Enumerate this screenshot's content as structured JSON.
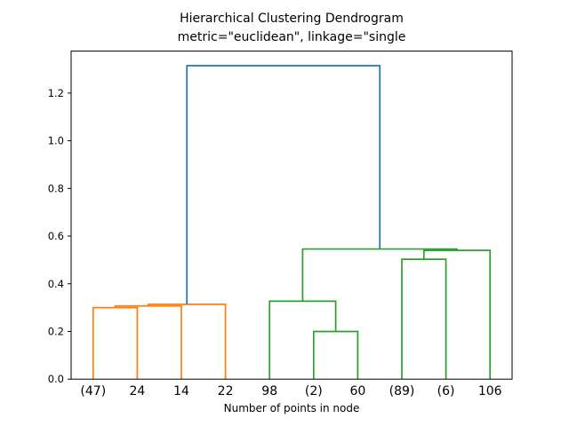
{
  "title": {
    "line1": "Hierarchical Clustering Dendrogram",
    "line2": "metric=\"euclidean\", linkage=\"single"
  },
  "xlabel": "Number of points in node",
  "colors": {
    "root_link": "#1f77b4",
    "cluster_left": "#ff7f0e",
    "cluster_right": "#2ca02c",
    "axis": "#000000",
    "background": "#ffffff"
  },
  "chart_data": {
    "type": "dendrogram",
    "title": "Hierarchical Clustering Dendrogram",
    "subtitle": "metric=\"euclidean\", linkage=\"single",
    "xlabel": "Number of points in node",
    "ylabel": "",
    "grid": false,
    "legend": false,
    "xlim": [
      0,
      100
    ],
    "ylim": [
      0,
      1.376
    ],
    "yticks": [
      0,
      0.2,
      0.4,
      0.6,
      0.8,
      1.0,
      1.2
    ],
    "ytick_labels": [
      "0.0",
      "0.2",
      "0.4",
      "0.6",
      "0.8",
      "1.0",
      "1.2"
    ],
    "leaves": [
      {
        "label": "(47)",
        "x": 5
      },
      {
        "label": "24",
        "x": 15
      },
      {
        "label": "14",
        "x": 25
      },
      {
        "label": "22",
        "x": 35
      },
      {
        "label": "98",
        "x": 45
      },
      {
        "label": "(2)",
        "x": 55
      },
      {
        "label": "60",
        "x": 65
      },
      {
        "label": "(89)",
        "x": 75
      },
      {
        "label": "(6)",
        "x": 85
      },
      {
        "label": "106",
        "x": 95
      }
    ],
    "links": [
      {
        "x1": 5,
        "x2": 15,
        "height": 0.3,
        "base1": 0,
        "base2": 0,
        "color": "#ff7f0e"
      },
      {
        "x1": 10,
        "x2": 25,
        "height": 0.307,
        "base1": 0.3,
        "base2": 0,
        "color": "#ff7f0e"
      },
      {
        "x1": 17.5,
        "x2": 35,
        "height": 0.314,
        "base1": 0.307,
        "base2": 0,
        "color": "#ff7f0e"
      },
      {
        "x1": 55,
        "x2": 65,
        "height": 0.2,
        "base1": 0,
        "base2": 0,
        "color": "#2ca02c"
      },
      {
        "x1": 45,
        "x2": 60,
        "height": 0.327,
        "base1": 0,
        "base2": 0.2,
        "color": "#2ca02c"
      },
      {
        "x1": 75,
        "x2": 85,
        "height": 0.503,
        "base1": 0,
        "base2": 0,
        "color": "#2ca02c"
      },
      {
        "x1": 80,
        "x2": 95,
        "height": 0.54,
        "base1": 0.503,
        "base2": 0,
        "color": "#2ca02c"
      },
      {
        "x1": 52.5,
        "x2": 87.5,
        "height": 0.546,
        "base1": 0.327,
        "base2": 0.54,
        "color": "#2ca02c"
      },
      {
        "x1": 26.25,
        "x2": 70,
        "height": 1.315,
        "base1": 0.314,
        "base2": 0.546,
        "color": "#1f77b4"
      }
    ]
  }
}
